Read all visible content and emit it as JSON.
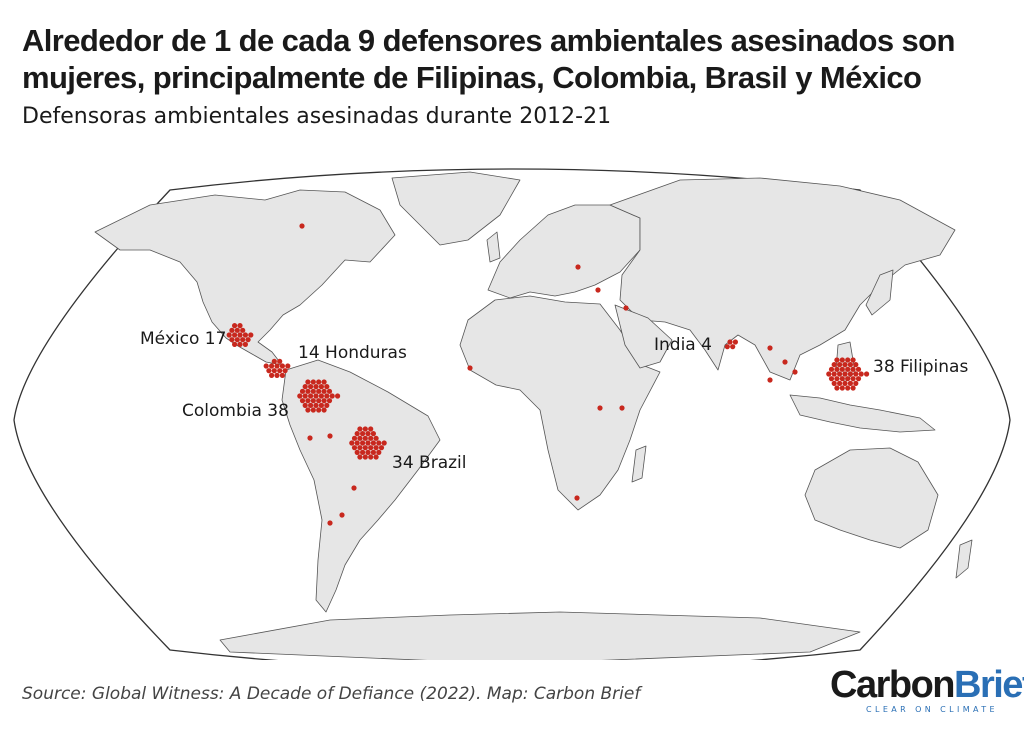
{
  "title": "Alrededor de 1 de cada 9 defensores ambientales asesinados son mujeres, principalmente de Filipinas, Colombia, Brasil y México",
  "subtitle": "Defensoras ambientales asesinadas durante 2012-21",
  "source": "Source: Global Witness: A Decade of Defiance (2022). Map: Carbon Brief",
  "logo": {
    "word_a": "Carbon",
    "word_b": "Brief",
    "tagline": "CLEAR ON CLIMATE"
  },
  "colors": {
    "dot": "#c8281e",
    "land": "#e6e6e6",
    "ocean": "#ffffff",
    "border": "#555555",
    "brand_blue": "#2a6fb5"
  },
  "clusters": {
    "mexico": {
      "label": "México 17",
      "count": 17
    },
    "honduras": {
      "label": "14 Honduras",
      "count": 14
    },
    "colombia": {
      "label": "Colombia 38",
      "count": 38
    },
    "brazil": {
      "label": "34 Brazil",
      "count": 34
    },
    "india": {
      "label": "India 4",
      "count": 4
    },
    "philippines": {
      "label": "38 Filipinas",
      "count": 38
    }
  }
}
